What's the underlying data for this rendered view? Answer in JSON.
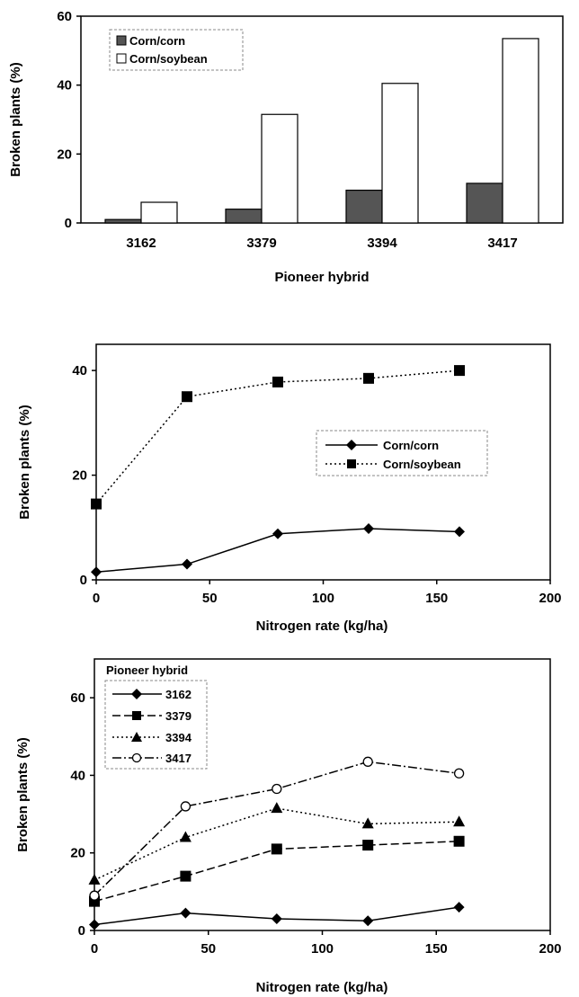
{
  "chart_data": [
    {
      "type": "bar",
      "xlabel": "Pioneer hybrid",
      "ylabel": "Broken plants (%)",
      "categories": [
        "3162",
        "3379",
        "3394",
        "3417"
      ],
      "ylim": [
        0,
        60
      ],
      "yticks": [
        0,
        20,
        40,
        60
      ],
      "grid": false,
      "legend_position": "top-left",
      "series": [
        {
          "name": "Corn/corn",
          "values": [
            1,
            4,
            9.5,
            11.5
          ],
          "color": "#555555"
        },
        {
          "name": "Corn/soybean",
          "values": [
            6,
            31.5,
            40.5,
            53.5
          ],
          "color": "#ffffff"
        }
      ]
    },
    {
      "type": "line",
      "xlabel": "Nitrogen rate (kg/ha)",
      "ylabel": "Broken plants (%)",
      "xlim": [
        0,
        200
      ],
      "ylim": [
        0,
        45
      ],
      "xticks": [
        0,
        50,
        100,
        150,
        200
      ],
      "yticks": [
        0,
        20,
        40
      ],
      "grid": false,
      "legend_position": "center-right",
      "x": [
        0,
        40,
        80,
        120,
        160
      ],
      "series": [
        {
          "name": "Corn/corn",
          "values": [
            1.5,
            3,
            8.8,
            9.8,
            9.2
          ],
          "marker": "diamond",
          "dash": "solid"
        },
        {
          "name": "Corn/soybean",
          "values": [
            14.5,
            35,
            37.8,
            38.5,
            40
          ],
          "marker": "square",
          "dash": "dotted"
        }
      ]
    },
    {
      "type": "line",
      "xlabel": "Nitrogen rate (kg/ha)",
      "ylabel": "Broken plants (%)",
      "xlim": [
        0,
        200
      ],
      "ylim": [
        0,
        70
      ],
      "xticks": [
        0,
        50,
        100,
        150,
        200
      ],
      "yticks": [
        0,
        20,
        40,
        60
      ],
      "grid": false,
      "legend_title": "Pioneer hybrid",
      "legend_position": "top-left",
      "x": [
        0,
        40,
        80,
        120,
        160
      ],
      "series": [
        {
          "name": "3162",
          "values": [
            1.5,
            4.5,
            3,
            2.5,
            6
          ],
          "marker": "diamond",
          "dash": "solid"
        },
        {
          "name": "3379",
          "values": [
            7.5,
            14,
            21,
            22,
            23
          ],
          "marker": "square",
          "dash": "longdash"
        },
        {
          "name": "3394",
          "values": [
            13,
            24,
            31.5,
            27.5,
            28
          ],
          "marker": "triangle",
          "dash": "dotted"
        },
        {
          "name": "3417",
          "values": [
            9,
            32,
            36.5,
            43.5,
            40.5
          ],
          "marker": "circle",
          "dash": "dashdot"
        }
      ]
    }
  ]
}
